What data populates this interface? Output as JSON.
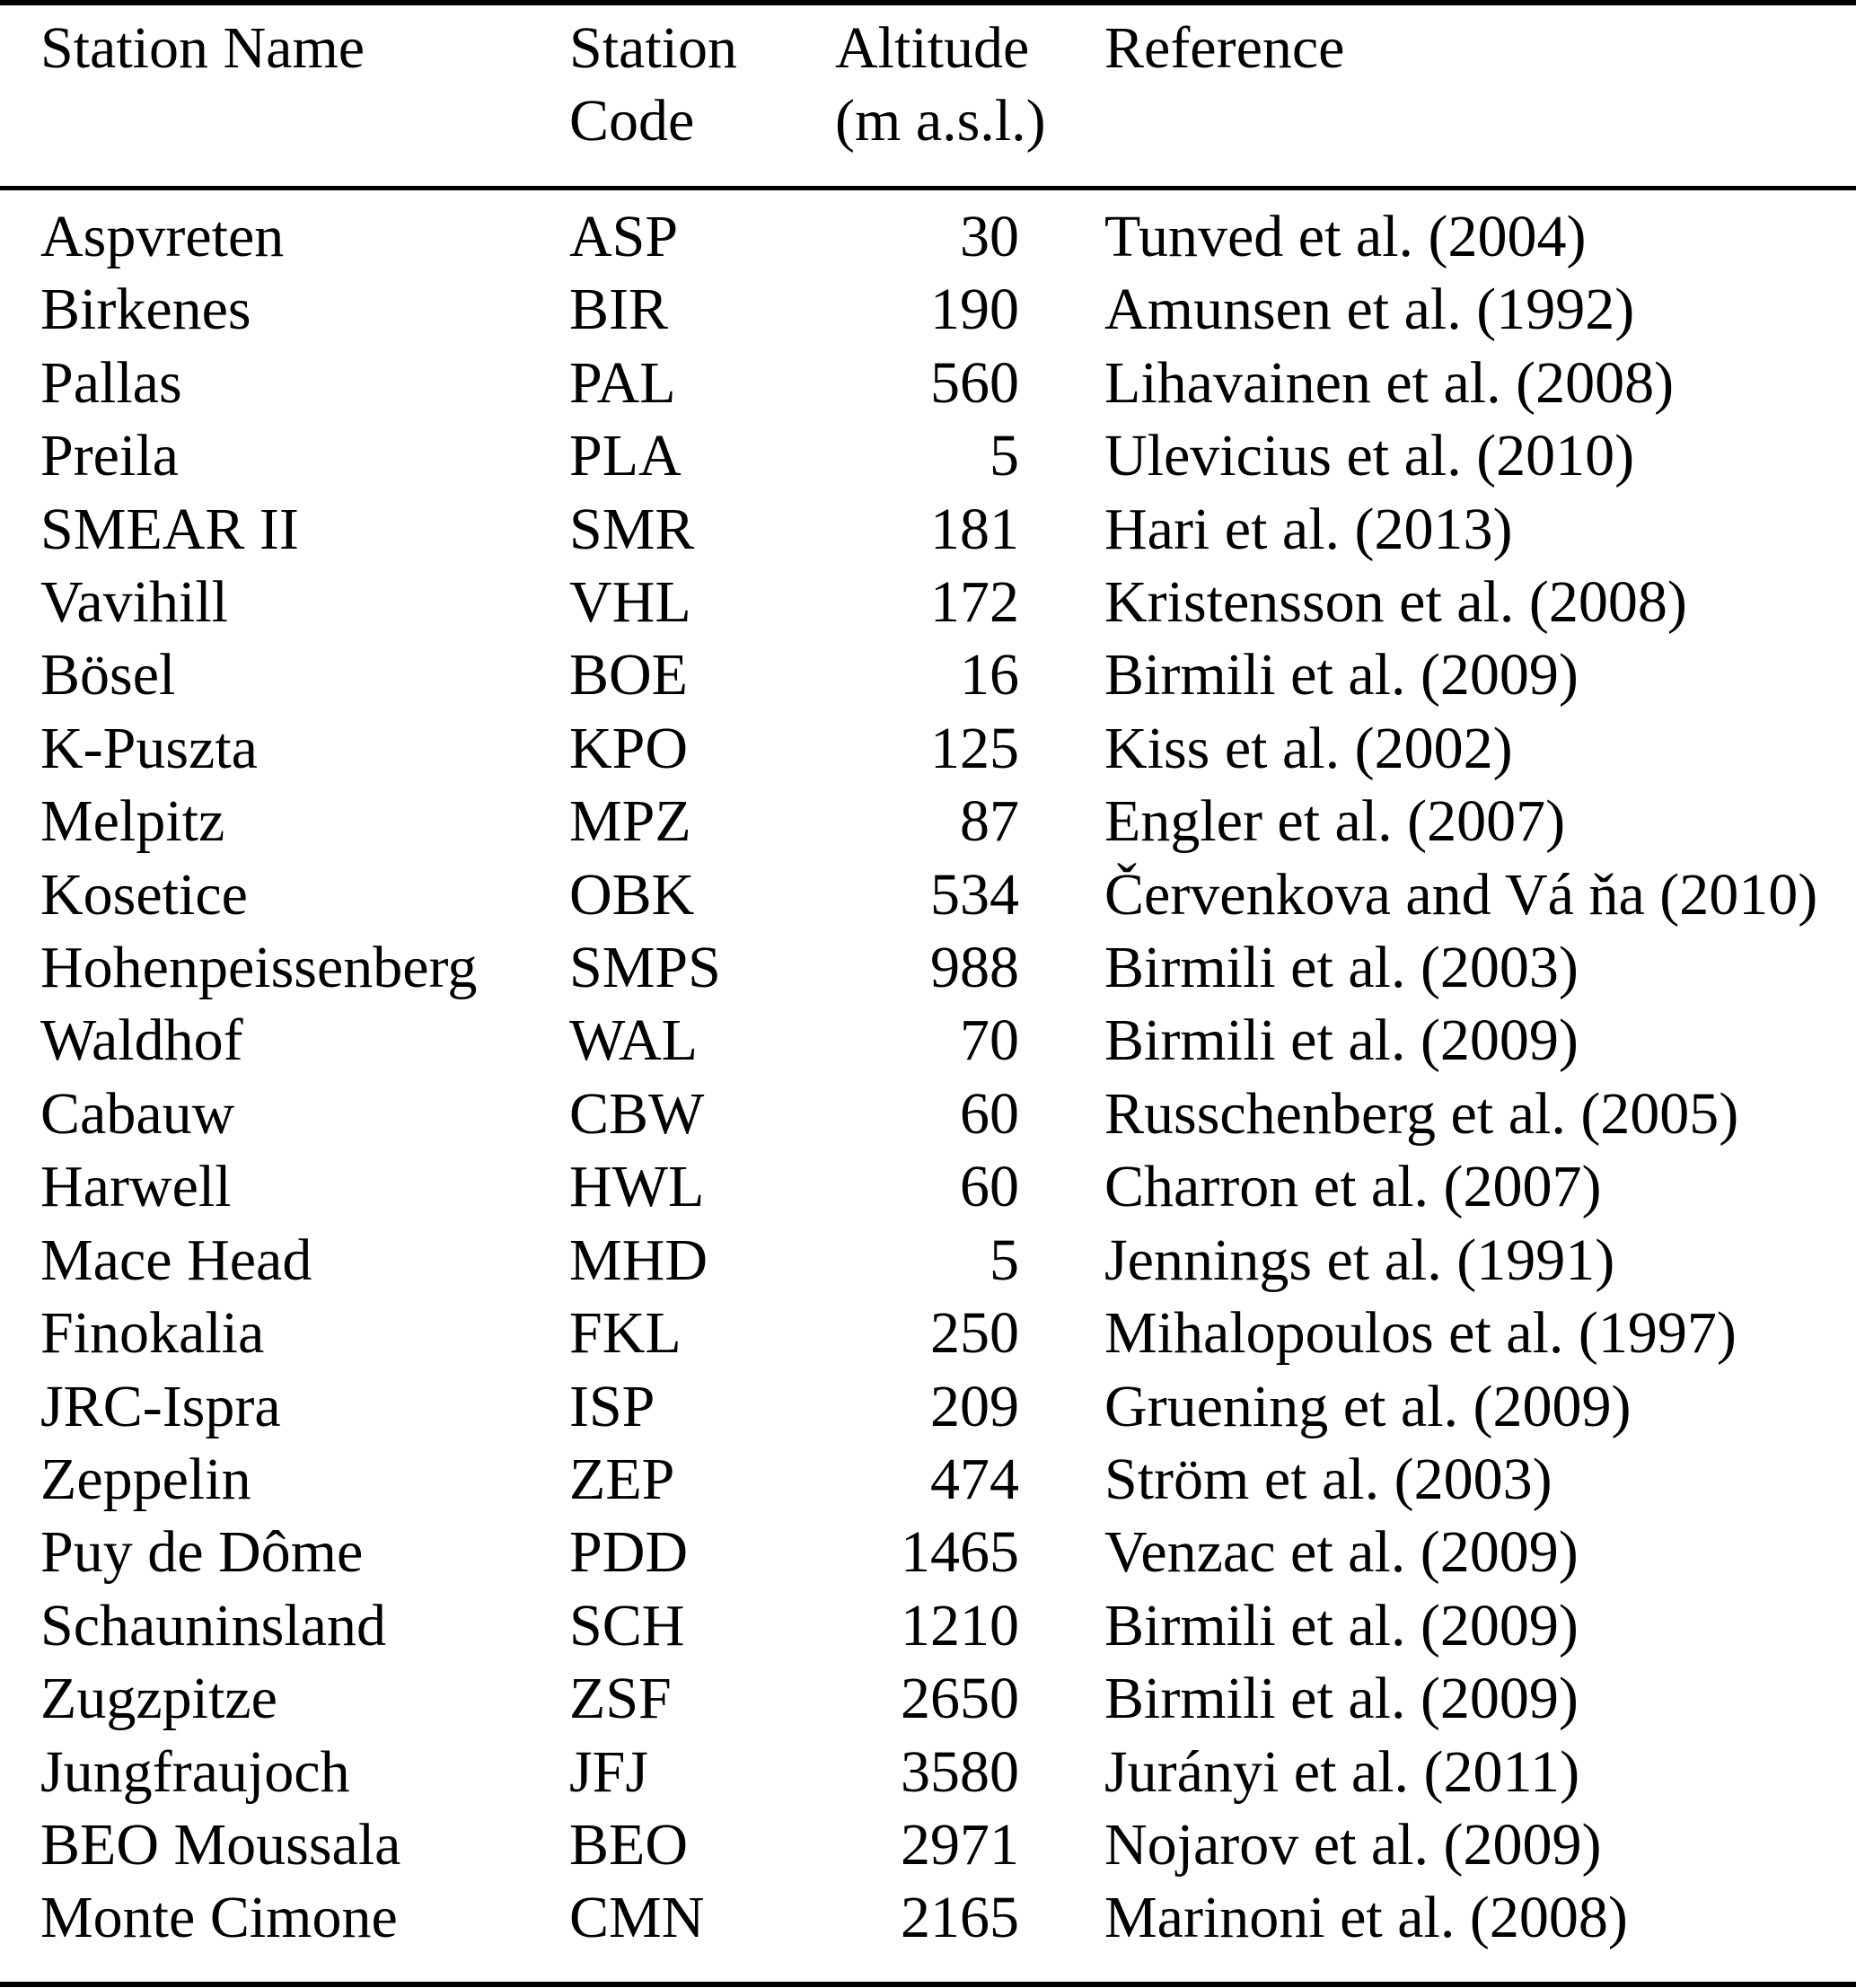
{
  "table": {
    "columns": [
      {
        "id": "station_name",
        "line1": "Station Name",
        "line2": ""
      },
      {
        "id": "station_code",
        "line1": "Station",
        "line2": "Code"
      },
      {
        "id": "altitude",
        "line1": "Altitude",
        "line2": "(m a.s.l.)"
      },
      {
        "id": "reference",
        "line1": "Reference",
        "line2": ""
      }
    ],
    "rows": [
      {
        "name": "Aspvreten",
        "code": "ASP",
        "altitude": "30",
        "reference": "Tunved et al. (2004)"
      },
      {
        "name": "Birkenes",
        "code": "BIR",
        "altitude": "190",
        "reference": "Amunsen et al. (1992)"
      },
      {
        "name": "Pallas",
        "code": "PAL",
        "altitude": "560",
        "reference": "Lihavainen et al. (2008)"
      },
      {
        "name": "Preila",
        "code": "PLA",
        "altitude": "5",
        "reference": "Ulevicius et al. (2010)"
      },
      {
        "name": "SMEAR II",
        "code": "SMR",
        "altitude": "181",
        "reference": "Hari et al. (2013)"
      },
      {
        "name": "Vavihill",
        "code": "VHL",
        "altitude": "172",
        "reference": "Kristensson et al. (2008)"
      },
      {
        "name": "Bösel",
        "code": "BOE",
        "altitude": "16",
        "reference": "Birmili et al. (2009)"
      },
      {
        "name": "K-Puszta",
        "code": "KPO",
        "altitude": "125",
        "reference": "Kiss et al. (2002)"
      },
      {
        "name": "Melpitz",
        "code": "MPZ",
        "altitude": "87",
        "reference": "Engler et al. (2007)"
      },
      {
        "name": "Kosetice",
        "code": "OBK",
        "altitude": "534",
        "reference": "Červenkova and Vá ňa (2010)"
      },
      {
        "name": "Hohenpeissenberg",
        "code": "SMPS",
        "altitude": "988",
        "reference": "Birmili et al. (2003)"
      },
      {
        "name": "Waldhof",
        "code": "WAL",
        "altitude": "70",
        "reference": "Birmili et al. (2009)"
      },
      {
        "name": "Cabauw",
        "code": "CBW",
        "altitude": "60",
        "reference": "Russchenberg et al. (2005)"
      },
      {
        "name": "Harwell",
        "code": "HWL",
        "altitude": "60",
        "reference": "Charron et al. (2007)"
      },
      {
        "name": "Mace Head",
        "code": "MHD",
        "altitude": "5",
        "reference": "Jennings et al. (1991)"
      },
      {
        "name": "Finokalia",
        "code": "FKL",
        "altitude": "250",
        "reference": "Mihalopoulos et al. (1997)"
      },
      {
        "name": "JRC-Ispra",
        "code": "ISP",
        "altitude": "209",
        "reference": "Gruening et al. (2009)"
      },
      {
        "name": "Zeppelin",
        "code": "ZEP",
        "altitude": "474",
        "reference": "Ström et al. (2003)"
      },
      {
        "name": "Puy de Dôme",
        "code": "PDD",
        "altitude": "1465",
        "reference": "Venzac et al. (2009)"
      },
      {
        "name": "Schauninsland",
        "code": "SCH",
        "altitude": "1210",
        "reference": "Birmili et al. (2009)"
      },
      {
        "name": "Zugzpitze",
        "code": "ZSF",
        "altitude": "2650",
        "reference": "Birmili et al. (2009)"
      },
      {
        "name": "Jungfraujoch",
        "code": "JFJ",
        "altitude": "3580",
        "reference": "Jurányi et al. (2011)"
      },
      {
        "name": "BEO Moussala",
        "code": "BEO",
        "altitude": "2971",
        "reference": "Nojarov et al. (2009)"
      },
      {
        "name": "Monte Cimone",
        "code": "CMN",
        "altitude": "2165",
        "reference": "Marinoni et al. (2008)"
      }
    ]
  }
}
